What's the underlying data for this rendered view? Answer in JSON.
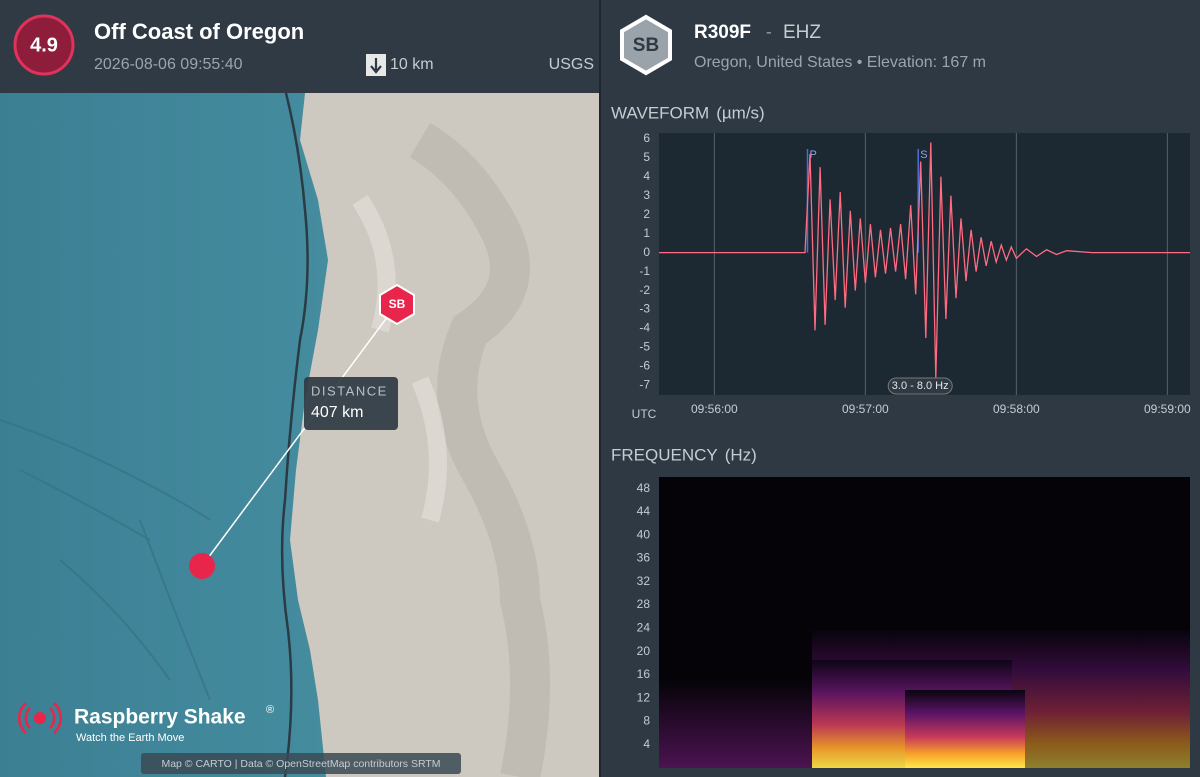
{
  "event": {
    "magnitude": "4.9",
    "title": "Off Coast of Oregon",
    "time": "2026-08-06 09:55:40",
    "depth": "10 km",
    "source": "USGS"
  },
  "map": {
    "station_badge": "SB",
    "distance_label": "DISTANCE",
    "distance": "407 km",
    "brand": "Raspberry Shake",
    "brand_mark": "®",
    "tagline": "Watch the Earth Move",
    "attribution": "Map © CARTO | Data © OpenStreetMap contributors SRTM"
  },
  "station": {
    "badge": "SB",
    "code": "R309F",
    "separator": "-",
    "channel": "EHZ",
    "location": "Oregon, United States • Elevation: 167 m"
  },
  "chart_data": [
    {
      "type": "line",
      "title": "WAVEFORM",
      "unit": "(µm/s)",
      "x_axis_label": "UTC",
      "x": [
        "09:55:38",
        "09:56:36",
        "09:56:38",
        "09:56:40",
        "09:56:42",
        "09:56:44",
        "09:56:46",
        "09:56:48",
        "09:56:50",
        "09:56:52",
        "09:56:54",
        "09:56:56",
        "09:56:58",
        "09:57:00",
        "09:57:02",
        "09:57:04",
        "09:57:06",
        "09:57:08",
        "09:57:10",
        "09:57:12",
        "09:57:14",
        "09:57:16",
        "09:57:18",
        "09:57:20",
        "09:57:22",
        "09:57:24",
        "09:57:26",
        "09:57:28",
        "09:57:30",
        "09:57:32",
        "09:57:34",
        "09:57:36",
        "09:57:38",
        "09:57:40",
        "09:57:42",
        "09:57:44",
        "09:57:46",
        "09:57:48",
        "09:57:50",
        "09:57:52",
        "09:57:54",
        "09:57:56",
        "09:57:58",
        "09:58:00",
        "09:58:04",
        "09:58:08",
        "09:58:12",
        "09:58:16",
        "09:58:20",
        "09:58:30",
        "09:59:09"
      ],
      "series": [
        {
          "color": "#ff6b81",
          "values": [
            0,
            0,
            5.2,
            -4.1,
            4.5,
            -3.8,
            2.8,
            -2.5,
            3.2,
            -2.9,
            2.2,
            -2,
            1.8,
            -1.6,
            1.5,
            -1.3,
            1.2,
            -1.1,
            1.3,
            -1,
            1.5,
            -1.4,
            2.5,
            -2.2,
            4.8,
            -4.5,
            5.8,
            -6.6,
            4,
            -3.5,
            3,
            -2.4,
            1.8,
            -1.5,
            1.2,
            -1,
            0.8,
            -0.7,
            0.6,
            -0.5,
            0.4,
            -0.4,
            0.3,
            -0.3,
            0.2,
            -0.2,
            0.15,
            -0.1,
            0.1,
            0,
            0
          ]
        }
      ],
      "xlim": [
        "09:55:38",
        "09:59:09"
      ],
      "xticks": [
        "09:56:00",
        "09:57:00",
        "09:58:00",
        "09:59:00"
      ],
      "ylim": [
        -7.5,
        6.3
      ],
      "yticks": [
        -7,
        -6,
        -5,
        -4,
        -3,
        -2,
        -1,
        0,
        1,
        2,
        3,
        4,
        5,
        6
      ],
      "grid_axis": "x",
      "phase_markers": [
        {
          "label": "P",
          "x": "09:56:37"
        },
        {
          "label": "S",
          "x": "09:57:21"
        }
      ],
      "annotation": "3.0 - 8.0 Hz"
    },
    {
      "type": "spectrogram",
      "title": "FREQUENCY",
      "unit": "(Hz)",
      "ylim": [
        0,
        50
      ],
      "yticks": [
        4,
        8,
        12,
        16,
        20,
        24,
        28,
        32,
        36,
        40,
        44,
        48
      ]
    }
  ]
}
